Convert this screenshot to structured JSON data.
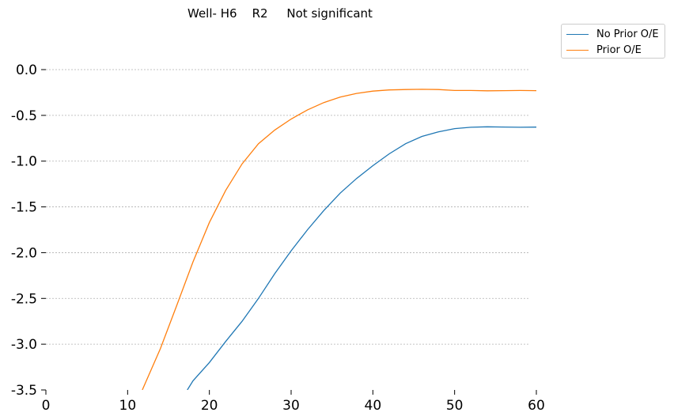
{
  "chart_data": {
    "type": "line",
    "title": "Well- H6    R2     Not significant",
    "xlabel": "",
    "ylabel": "",
    "xlim": [
      0,
      60
    ],
    "ylim": [
      -3.5,
      0.1
    ],
    "xticks": [
      "0",
      "10",
      "20",
      "30",
      "40",
      "50",
      "60"
    ],
    "yticks": [
      "0.0",
      "-0.5",
      "-1.0",
      "-1.5",
      "-2.0",
      "-2.5",
      "-3.0",
      "-3.5"
    ],
    "grid": "horizontal dashed",
    "legend_position": "outside top-right",
    "series": [
      {
        "name": "No Prior O/E",
        "color": "#1f77b4",
        "x": [
          17.3,
          18,
          20,
          22,
          24,
          26,
          28,
          30,
          32,
          34,
          36,
          38,
          40,
          42,
          44,
          46,
          48,
          50,
          52,
          54,
          56,
          58,
          60
        ],
        "y": [
          -3.5,
          -3.4,
          -3.2,
          -2.97,
          -2.75,
          -2.5,
          -2.23,
          -1.98,
          -1.75,
          -1.54,
          -1.35,
          -1.19,
          -1.05,
          -0.92,
          -0.81,
          -0.73,
          -0.68,
          -0.645,
          -0.63,
          -0.625,
          -0.627,
          -0.63,
          -0.628
        ]
      },
      {
        "name": "Prior O/E",
        "color": "#ff7f0e",
        "x": [
          11.8,
          14,
          16,
          18,
          20,
          22,
          24,
          26,
          28,
          30,
          32,
          34,
          36,
          38,
          40,
          42,
          44,
          46,
          48,
          50,
          52,
          54,
          56,
          58,
          60
        ],
        "y": [
          -3.5,
          -3.05,
          -2.58,
          -2.1,
          -1.67,
          -1.32,
          -1.03,
          -0.81,
          -0.66,
          -0.54,
          -0.44,
          -0.36,
          -0.3,
          -0.26,
          -0.235,
          -0.222,
          -0.218,
          -0.215,
          -0.218,
          -0.228,
          -0.228,
          -0.232,
          -0.23,
          -0.228,
          -0.23
        ]
      }
    ]
  }
}
